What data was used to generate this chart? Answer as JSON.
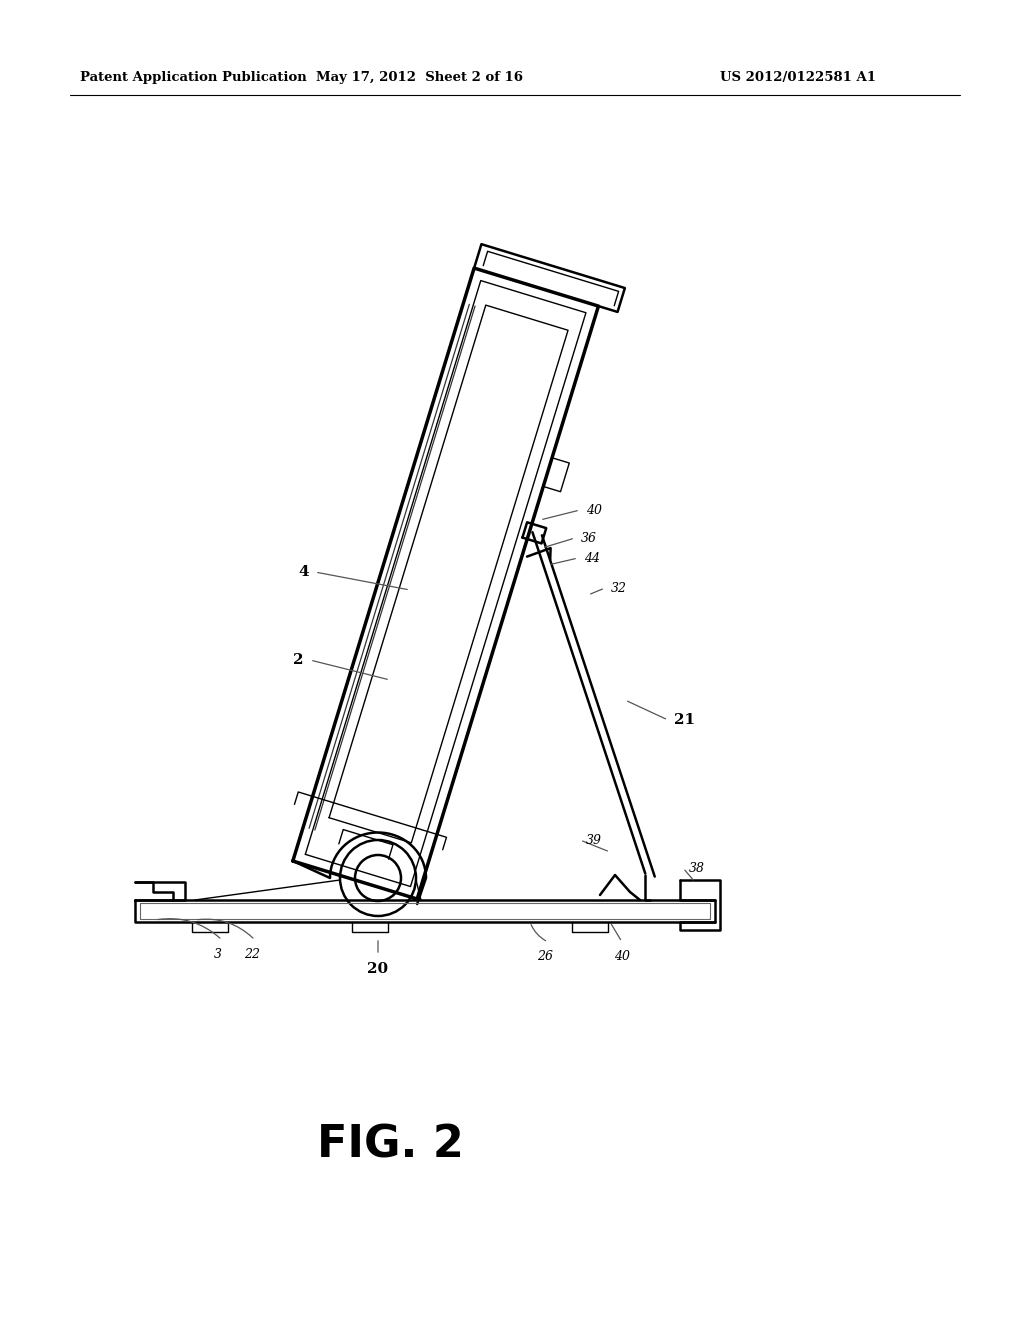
{
  "bg_color": "#ffffff",
  "header_left": "Patent Application Publication",
  "header_mid": "May 17, 2012  Sheet 2 of 16",
  "header_right": "US 2012/0122581 A1",
  "fig_label": "FIG. 2"
}
